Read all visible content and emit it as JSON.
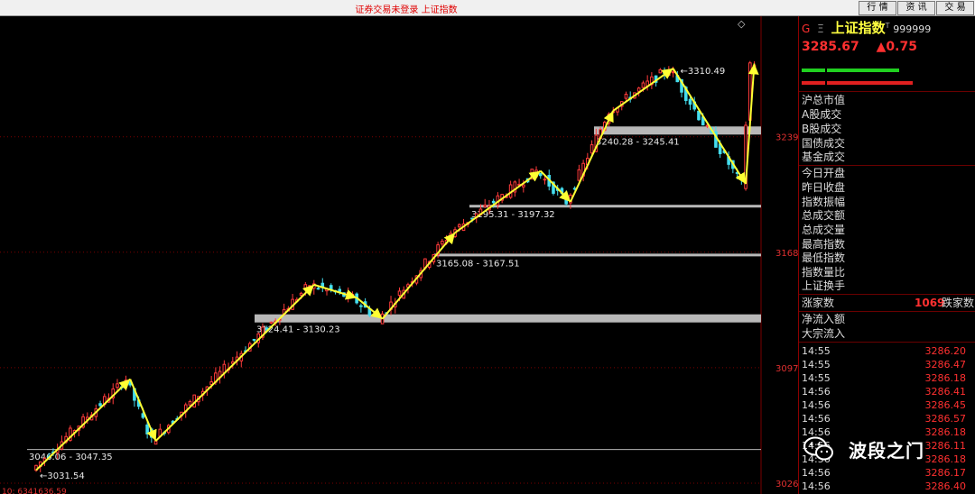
{
  "window": {
    "title": "证券交易未登录 上证指数",
    "buttons": [
      "行 情",
      "资 讯",
      "交 易"
    ]
  },
  "chart_data": {
    "type": "candlestick",
    "ylim": [
      3026,
      3312
    ],
    "y_ticks": [
      "3239",
      "3168",
      "3097",
      "3026"
    ],
    "y_tick_values": [
      3239,
      3168,
      3097,
      3026
    ],
    "corner_symbol": "◇",
    "bottom_left_label": "10: 6341636.59",
    "annotations": {
      "high": "3310.49",
      "low": "3031.54"
    },
    "support_zones": [
      {
        "label": "3046.06 - 3047.35",
        "low": 3046.06,
        "high": 3047.35
      },
      {
        "label": "3124.41 - 3130.23",
        "low": 3124.41,
        "high": 3130.23
      },
      {
        "label": "3165.08 - 3167.51",
        "low": 3165.08,
        "high": 3167.51
      },
      {
        "label": "3195.31 - 3197.32",
        "low": 3195.31,
        "high": 3197.32
      },
      {
        "label": "3240.28 - 3245.41",
        "low": 3240.28,
        "high": 3245.41
      }
    ],
    "trend_path": [
      [
        0,
        3034
      ],
      [
        22,
        3090
      ],
      [
        28,
        3052
      ],
      [
        65,
        3148
      ],
      [
        75,
        3140
      ],
      [
        81,
        3127
      ],
      [
        98,
        3180
      ],
      [
        118,
        3218
      ],
      [
        125,
        3199
      ],
      [
        135,
        3255
      ],
      [
        149,
        3281
      ],
      [
        166,
        3210
      ],
      [
        168,
        3284
      ]
    ],
    "colors": {
      "up": "#ff3b3b",
      "down": "#44ddee",
      "arrow": "#ffff33",
      "zone": "#b8b8b8",
      "grid": "#7a0000"
    }
  },
  "panel": {
    "code_prefix": "G",
    "menu_glyph": "Ξ",
    "name": "上证指数",
    "name_sup": "T",
    "code": "999999",
    "price": "3285.67",
    "change": "▲0.75",
    "labels_a": [
      "沪总市值",
      "A股成交",
      "B股成交",
      "国债成交",
      "基金成交"
    ],
    "labels_b": [
      "今日开盘",
      "昨日收盘",
      "指数振幅",
      "总成交额",
      "总成交量",
      "最高指数",
      "最低指数",
      "指数量比",
      "上证换手"
    ],
    "rise_label": "涨家数",
    "rise_value": "1069",
    "fall_label": "跌家数",
    "flow_labels": [
      "净流入额",
      "大宗流入"
    ],
    "ticks": [
      {
        "time": "14:55",
        "value": "3286.20"
      },
      {
        "time": "14:55",
        "value": "3286.47"
      },
      {
        "time": "14:55",
        "value": "3286.18"
      },
      {
        "time": "14:56",
        "value": "3286.41"
      },
      {
        "time": "14:56",
        "value": "3286.45"
      },
      {
        "time": "14:56",
        "value": "3286.57"
      },
      {
        "time": "14:56",
        "value": "3286.18"
      },
      {
        "time": "14:56",
        "value": "3286.11"
      },
      {
        "time": "14:56",
        "value": "3286.18"
      },
      {
        "time": "14:56",
        "value": "3286.17"
      },
      {
        "time": "14:56",
        "value": "3286.40"
      }
    ],
    "watermark": "波段之门"
  }
}
